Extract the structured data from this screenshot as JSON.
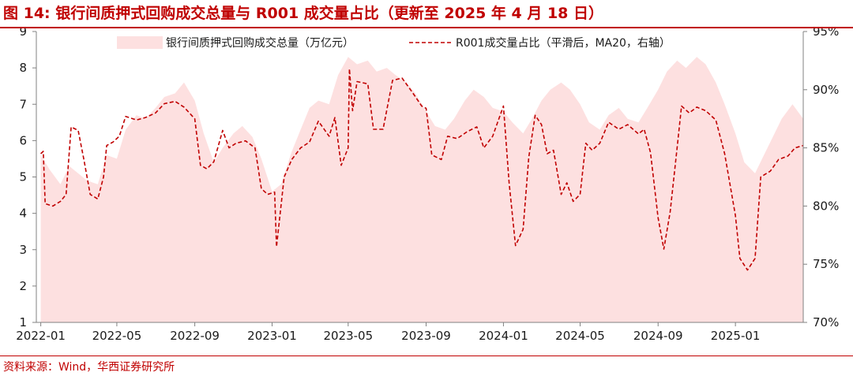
{
  "header": {
    "title": "图 14:  银行间质押式回购成交总量与 R001 成交量占比（更新至 2025 年 4 月 18 日）"
  },
  "footer": {
    "source": "资料来源：Wind，华西证券研究所"
  },
  "colors": {
    "accent": "#c00000",
    "area_fill": "#fde0e0",
    "line": "#c00000"
  },
  "chart_data": {
    "type": "area+line",
    "title": "",
    "x_tick_labels": [
      "2022-01",
      "2022-05",
      "2022-09",
      "2023-01",
      "2023-05",
      "2023-09",
      "2024-01",
      "2024-05",
      "2024-09",
      "2025-01"
    ],
    "x_range": [
      "2021-12-25",
      "2025-04-18"
    ],
    "y_left_range": [
      1,
      9
    ],
    "y_left_ticks": [
      "1",
      "2",
      "3",
      "4",
      "5",
      "6",
      "7",
      "8",
      "9"
    ],
    "y_right_range": [
      70,
      95
    ],
    "y_right_ticks": [
      "70%",
      "75%",
      "80%",
      "85%",
      "90%",
      "95%"
    ],
    "grid": false,
    "legend_position": "top",
    "series": [
      {
        "name": "银行间质押式回购成交总量（万亿元）",
        "axis": "left",
        "style": "area",
        "points": [
          [
            "2022-01-01",
            5.6
          ],
          [
            "2022-01-15",
            5.2
          ],
          [
            "2022-02-01",
            4.8
          ],
          [
            "2022-02-15",
            5.3
          ],
          [
            "2022-03-01",
            5.1
          ],
          [
            "2022-03-15",
            4.9
          ],
          [
            "2022-04-01",
            4.8
          ],
          [
            "2022-04-15",
            5.6
          ],
          [
            "2022-05-01",
            5.5
          ],
          [
            "2022-05-15",
            6.3
          ],
          [
            "2022-06-01",
            6.7
          ],
          [
            "2022-06-15",
            6.6
          ],
          [
            "2022-07-01",
            6.9
          ],
          [
            "2022-07-15",
            7.2
          ],
          [
            "2022-08-01",
            7.3
          ],
          [
            "2022-08-15",
            7.6
          ],
          [
            "2022-09-01",
            7.1
          ],
          [
            "2022-09-15",
            6.2
          ],
          [
            "2022-10-01",
            5.4
          ],
          [
            "2022-10-15",
            5.8
          ],
          [
            "2022-11-01",
            6.2
          ],
          [
            "2022-11-15",
            6.4
          ],
          [
            "2022-12-01",
            6.1
          ],
          [
            "2022-12-15",
            5.5
          ],
          [
            "2023-01-01",
            4.6
          ],
          [
            "2023-01-15",
            4.8
          ],
          [
            "2023-02-01",
            5.7
          ],
          [
            "2023-02-15",
            6.3
          ],
          [
            "2023-03-01",
            6.9
          ],
          [
            "2023-03-15",
            7.1
          ],
          [
            "2023-04-01",
            7.0
          ],
          [
            "2023-04-15",
            7.8
          ],
          [
            "2023-05-01",
            8.3
          ],
          [
            "2023-05-15",
            8.1
          ],
          [
            "2023-06-01",
            8.2
          ],
          [
            "2023-06-15",
            7.9
          ],
          [
            "2023-07-01",
            8.0
          ],
          [
            "2023-07-15",
            7.8
          ],
          [
            "2023-08-01",
            7.6
          ],
          [
            "2023-08-15",
            7.3
          ],
          [
            "2023-09-01",
            6.8
          ],
          [
            "2023-09-15",
            6.4
          ],
          [
            "2023-10-01",
            6.3
          ],
          [
            "2023-10-15",
            6.6
          ],
          [
            "2023-11-01",
            7.1
          ],
          [
            "2023-11-15",
            7.4
          ],
          [
            "2023-12-01",
            7.2
          ],
          [
            "2023-12-15",
            6.9
          ],
          [
            "2024-01-01",
            6.8
          ],
          [
            "2024-01-15",
            6.5
          ],
          [
            "2024-02-01",
            6.2
          ],
          [
            "2024-02-15",
            6.6
          ],
          [
            "2024-03-01",
            7.1
          ],
          [
            "2024-03-15",
            7.4
          ],
          [
            "2024-04-01",
            7.6
          ],
          [
            "2024-04-15",
            7.4
          ],
          [
            "2024-05-01",
            7.0
          ],
          [
            "2024-05-15",
            6.5
          ],
          [
            "2024-06-01",
            6.3
          ],
          [
            "2024-06-15",
            6.7
          ],
          [
            "2024-07-01",
            6.9
          ],
          [
            "2024-07-15",
            6.6
          ],
          [
            "2024-08-01",
            6.5
          ],
          [
            "2024-08-15",
            6.9
          ],
          [
            "2024-09-01",
            7.4
          ],
          [
            "2024-09-15",
            7.9
          ],
          [
            "2024-10-01",
            8.2
          ],
          [
            "2024-10-15",
            8.0
          ],
          [
            "2024-11-01",
            8.3
          ],
          [
            "2024-11-15",
            8.1
          ],
          [
            "2024-12-01",
            7.6
          ],
          [
            "2024-12-15",
            7.0
          ],
          [
            "2025-01-01",
            6.2
          ],
          [
            "2025-01-15",
            5.4
          ],
          [
            "2025-02-01",
            5.1
          ],
          [
            "2025-02-15",
            5.6
          ],
          [
            "2025-03-01",
            6.1
          ],
          [
            "2025-03-15",
            6.6
          ],
          [
            "2025-04-01",
            7.0
          ],
          [
            "2025-04-18",
            6.6
          ]
        ]
      },
      {
        "name": "R001成交量占比（平滑后，MA20，右轴）",
        "axis": "right",
        "style": "dashed-line",
        "points": [
          [
            "2022-01-01",
            84.5
          ],
          [
            "2022-01-05",
            84.7
          ],
          [
            "2022-01-08",
            80.2
          ],
          [
            "2022-01-20",
            80.0
          ],
          [
            "2022-02-01",
            80.4
          ],
          [
            "2022-02-10",
            81.0
          ],
          [
            "2022-02-18",
            86.8
          ],
          [
            "2022-03-01",
            86.5
          ],
          [
            "2022-03-10",
            84.0
          ],
          [
            "2022-03-20",
            81.0
          ],
          [
            "2022-04-01",
            80.6
          ],
          [
            "2022-04-10",
            82.5
          ],
          [
            "2022-04-15",
            85.2
          ],
          [
            "2022-04-25",
            85.5
          ],
          [
            "2022-05-05",
            86.0
          ],
          [
            "2022-05-15",
            87.7
          ],
          [
            "2022-06-01",
            87.4
          ],
          [
            "2022-06-15",
            87.6
          ],
          [
            "2022-07-01",
            88.0
          ],
          [
            "2022-07-15",
            88.8
          ],
          [
            "2022-08-01",
            89.0
          ],
          [
            "2022-08-15",
            88.5
          ],
          [
            "2022-09-01",
            87.5
          ],
          [
            "2022-09-10",
            83.5
          ],
          [
            "2022-09-20",
            83.2
          ],
          [
            "2022-10-01",
            83.8
          ],
          [
            "2022-10-15",
            86.5
          ],
          [
            "2022-10-25",
            85.0
          ],
          [
            "2022-11-05",
            85.4
          ],
          [
            "2022-11-20",
            85.6
          ],
          [
            "2022-12-05",
            85.0
          ],
          [
            "2022-12-15",
            81.5
          ],
          [
            "2022-12-25",
            81.0
          ],
          [
            "2023-01-05",
            81.2
          ],
          [
            "2023-01-08",
            76.5
          ],
          [
            "2023-01-20",
            82.5
          ],
          [
            "2023-02-01",
            84.0
          ],
          [
            "2023-02-15",
            85.0
          ],
          [
            "2023-03-01",
            85.5
          ],
          [
            "2023-03-15",
            87.3
          ],
          [
            "2023-04-01",
            86.0
          ],
          [
            "2023-04-10",
            87.6
          ],
          [
            "2023-04-20",
            83.5
          ],
          [
            "2023-05-01",
            85.0
          ],
          [
            "2023-05-03",
            91.8
          ],
          [
            "2023-05-08",
            88.2
          ],
          [
            "2023-05-15",
            90.7
          ],
          [
            "2023-06-01",
            90.5
          ],
          [
            "2023-06-10",
            86.6
          ],
          [
            "2023-06-25",
            86.6
          ],
          [
            "2023-07-10",
            90.8
          ],
          [
            "2023-07-25",
            91.0
          ],
          [
            "2023-08-10",
            89.8
          ],
          [
            "2023-08-25",
            88.6
          ],
          [
            "2023-09-01",
            88.4
          ],
          [
            "2023-09-10",
            84.4
          ],
          [
            "2023-09-25",
            84.0
          ],
          [
            "2023-10-05",
            86.0
          ],
          [
            "2023-10-20",
            85.8
          ],
          [
            "2023-11-05",
            86.4
          ],
          [
            "2023-11-20",
            86.8
          ],
          [
            "2023-12-01",
            85.0
          ],
          [
            "2023-12-15",
            86.0
          ],
          [
            "2024-01-01",
            88.6
          ],
          [
            "2024-01-10",
            82.0
          ],
          [
            "2024-01-20",
            76.6
          ],
          [
            "2024-02-01",
            78.0
          ],
          [
            "2024-02-10",
            84.2
          ],
          [
            "2024-02-20",
            87.8
          ],
          [
            "2024-03-01",
            87.0
          ],
          [
            "2024-03-10",
            84.5
          ],
          [
            "2024-03-20",
            84.8
          ],
          [
            "2024-04-01",
            81.0
          ],
          [
            "2024-04-10",
            82.0
          ],
          [
            "2024-04-20",
            80.4
          ],
          [
            "2024-05-01",
            81.0
          ],
          [
            "2024-05-10",
            85.4
          ],
          [
            "2024-05-20",
            84.8
          ],
          [
            "2024-06-01",
            85.4
          ],
          [
            "2024-06-15",
            87.2
          ],
          [
            "2024-07-01",
            86.6
          ],
          [
            "2024-07-15",
            87.0
          ],
          [
            "2024-08-01",
            86.2
          ],
          [
            "2024-08-10",
            86.6
          ],
          [
            "2024-08-20",
            84.6
          ],
          [
            "2024-09-01",
            79.0
          ],
          [
            "2024-09-10",
            76.3
          ],
          [
            "2024-09-20",
            79.5
          ],
          [
            "2024-10-01",
            85.0
          ],
          [
            "2024-10-08",
            88.6
          ],
          [
            "2024-10-20",
            88.0
          ],
          [
            "2024-11-01",
            88.5
          ],
          [
            "2024-11-15",
            88.2
          ],
          [
            "2024-12-01",
            87.4
          ],
          [
            "2024-12-15",
            84.5
          ],
          [
            "2025-01-01",
            79.2
          ],
          [
            "2025-01-08",
            75.5
          ],
          [
            "2025-01-20",
            74.5
          ],
          [
            "2025-02-01",
            75.5
          ],
          [
            "2025-02-10",
            82.5
          ],
          [
            "2025-02-25",
            83.0
          ],
          [
            "2025-03-10",
            84.0
          ],
          [
            "2025-03-25",
            84.3
          ],
          [
            "2025-04-05",
            85.0
          ],
          [
            "2025-04-18",
            85.2
          ]
        ]
      }
    ]
  }
}
